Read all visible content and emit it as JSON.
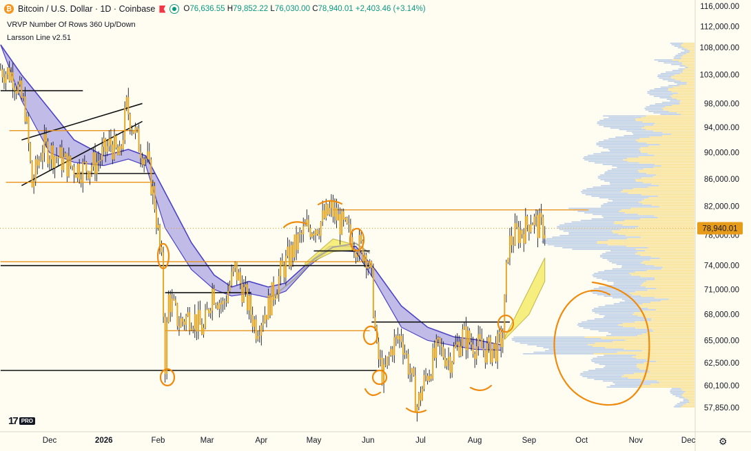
{
  "header": {
    "symbol": "Bitcoin / U.S. Dollar · 1D · Coinbase",
    "coin_glyph": "₿",
    "ohlc": {
      "o_label": "O",
      "o": "76,636.55",
      "h_label": "H",
      "h": "79,852.22",
      "l_label": "L",
      "l": "76,030.00",
      "c_label": "C",
      "c": "78,940.01",
      "change": "+2,403.46 (+3.14%)"
    },
    "indicator1": "VRVP Number Of Rows 360 Up/Down",
    "indicator2": "Larsson Line v2.51"
  },
  "branding": {
    "logo": "17",
    "badge": "PRO"
  },
  "icons": [
    "bitcoin-icon",
    "flag-icon",
    "status-dot-icon",
    "gear-icon"
  ],
  "colors": {
    "background": "#fffdf2",
    "candle": "#e2a727",
    "wick": "#131722",
    "cloud_fill": "#8c85de",
    "cloud_edge": "#4b43c4",
    "lines": "#e8921c",
    "annotation": "#f08a0c",
    "volume_up": "#f6d87a",
    "volume_down": "#9db8e2",
    "price_tag": "#e69b1a"
  },
  "chart_data": {
    "type": "candlestick",
    "title": "Bitcoin / U.S. Dollar · 1D · Coinbase",
    "y_axis": {
      "scale": "log",
      "min": 56500,
      "max": 117000,
      "ticks": [
        116000,
        112000,
        108000,
        103000,
        98000,
        94000,
        90000,
        86000,
        82000,
        78000,
        74000,
        71000,
        68000,
        65000,
        62500,
        60100,
        57850
      ],
      "tick_labels": [
        "116,000.00",
        "112,000.00",
        "108,000.00",
        "103,000.00",
        "98,000.00",
        "94,000.00",
        "90,000.00",
        "86,000.00",
        "82,000.00",
        "78,000.00",
        "74,000.00",
        "71,000.00",
        "68,000.00",
        "65,000.00",
        "62,500.00",
        "60,100.00",
        "57,850.00"
      ]
    },
    "x_axis": {
      "start": "2025-11-03",
      "end": "2026-12-25",
      "ticks": [
        {
          "label": "Dec",
          "date": "2025-12-01"
        },
        {
          "label": "2026",
          "date": "2026-01-01"
        },
        {
          "label": "Feb",
          "date": "2026-02-01"
        },
        {
          "label": "Mar",
          "date": "2026-03-01"
        },
        {
          "label": "Apr",
          "date": "2026-04-01"
        },
        {
          "label": "May",
          "date": "2026-05-01"
        },
        {
          "label": "Jun",
          "date": "2026-06-01"
        },
        {
          "label": "Jul",
          "date": "2026-07-01"
        },
        {
          "label": "Aug",
          "date": "2026-08-01"
        },
        {
          "label": "Sep",
          "date": "2026-09-01"
        },
        {
          "label": "Oct",
          "date": "2026-10-01"
        },
        {
          "label": "Nov",
          "date": "2026-11-01"
        },
        {
          "label": "Dec",
          "date": "2026-12-01"
        }
      ]
    },
    "last_price": {
      "value": 78940,
      "label": "78,940.01"
    },
    "price_path": [
      [
        "2025-11-03",
        104000
      ],
      [
        "2025-11-10",
        103000
      ],
      [
        "2025-11-17",
        97000
      ],
      [
        "2025-11-21",
        85000
      ],
      [
        "2025-11-27",
        91000
      ],
      [
        "2025-12-05",
        89500
      ],
      [
        "2025-12-12",
        88000
      ],
      [
        "2025-12-20",
        87500
      ],
      [
        "2025-12-28",
        88500
      ],
      [
        "2026-01-05",
        91500
      ],
      [
        "2026-01-10",
        89000
      ],
      [
        "2026-01-14",
        97500
      ],
      [
        "2026-01-20",
        92000
      ],
      [
        "2026-01-26",
        88500
      ],
      [
        "2026-01-30",
        82500
      ],
      [
        "2026-02-03",
        74000
      ],
      [
        "2026-02-05",
        62500
      ],
      [
        "2026-02-07",
        70000
      ],
      [
        "2026-02-13",
        67000
      ],
      [
        "2026-02-20",
        68000
      ],
      [
        "2026-02-27",
        66000
      ],
      [
        "2026-03-04",
        71000
      ],
      [
        "2026-03-10",
        69000
      ],
      [
        "2026-03-17",
        73500
      ],
      [
        "2026-03-23",
        70000
      ],
      [
        "2026-03-29",
        66500
      ],
      [
        "2026-04-05",
        69000
      ],
      [
        "2026-04-12",
        73000
      ],
      [
        "2026-04-19",
        76000
      ],
      [
        "2026-04-27",
        79000
      ],
      [
        "2026-05-04",
        79500
      ],
      [
        "2026-05-11",
        81500
      ],
      [
        "2026-05-18",
        79000
      ],
      [
        "2026-05-25",
        77000
      ],
      [
        "2026-05-31",
        75500
      ],
      [
        "2026-06-03",
        72000
      ],
      [
        "2026-06-06",
        63500
      ],
      [
        "2026-06-10",
        61000
      ],
      [
        "2026-06-15",
        64500
      ],
      [
        "2026-06-20",
        65500
      ],
      [
        "2026-06-25",
        61500
      ],
      [
        "2026-06-29",
        58000
      ],
      [
        "2026-07-04",
        61000
      ],
      [
        "2026-07-11",
        64000
      ],
      [
        "2026-07-18",
        63000
      ],
      [
        "2026-07-25",
        65500
      ],
      [
        "2026-08-01",
        64500
      ],
      [
        "2026-08-08",
        63800
      ],
      [
        "2026-08-14",
        64200
      ],
      [
        "2026-08-17",
        65500
      ],
      [
        "2026-08-20",
        76500
      ],
      [
        "2026-08-24",
        78000
      ],
      [
        "2026-08-30",
        79000
      ],
      [
        "2026-09-02",
        80500
      ],
      [
        "2026-09-06",
        79200
      ],
      [
        "2026-09-10",
        78940
      ]
    ],
    "cloud": [
      [
        "2025-11-03",
        108500,
        108500
      ],
      [
        "2025-11-15",
        103000,
        98500
      ],
      [
        "2025-12-01",
        97000,
        90000
      ],
      [
        "2025-12-15",
        92000,
        88500
      ],
      [
        "2026-01-01",
        89500,
        88000
      ],
      [
        "2026-01-15",
        90500,
        89000
      ],
      [
        "2026-01-25",
        89500,
        88000
      ],
      [
        "2026-02-05",
        84000,
        79000
      ],
      [
        "2026-02-20",
        77000,
        73500
      ],
      [
        "2026-03-05",
        72800,
        71000
      ],
      [
        "2026-03-15",
        71300,
        70200
      ],
      [
        "2026-03-25",
        72000,
        70500
      ],
      [
        "2026-04-05",
        71300,
        70000
      ],
      [
        "2026-04-15",
        71800,
        70800
      ],
      [
        "2026-04-28",
        74400,
        73900
      ],
      [
        "2026-05-10",
        76500,
        76000
      ],
      [
        "2026-05-25",
        76500,
        75800
      ],
      [
        "2026-06-05",
        73500,
        72000
      ],
      [
        "2026-06-20",
        69000,
        66500
      ],
      [
        "2026-07-05",
        66500,
        65000
      ],
      [
        "2026-07-20",
        65400,
        64400
      ],
      [
        "2026-08-01",
        65100,
        64000
      ],
      [
        "2026-08-16",
        64500,
        63900
      ]
    ],
    "gray_line": [
      [
        "2026-04-08",
        70200
      ],
      [
        "2026-04-20",
        72300
      ],
      [
        "2026-05-01",
        74800
      ],
      [
        "2026-05-12",
        76400
      ],
      [
        "2026-05-25",
        76900
      ],
      [
        "2026-06-02",
        75600
      ]
    ],
    "yellow_bands": [
      {
        "upper": [
          [
            "2026-04-26",
            74300
          ],
          [
            "2026-05-12",
            77500
          ],
          [
            "2026-05-23",
            76800
          ]
        ],
        "lower": [
          [
            "2026-04-26",
            74000
          ],
          [
            "2026-05-12",
            75800
          ],
          [
            "2026-05-23",
            76000
          ]
        ]
      },
      {
        "upper": [
          [
            "2026-08-18",
            65300
          ],
          [
            "2026-09-01",
            71000
          ],
          [
            "2026-09-10",
            75000
          ]
        ],
        "lower": [
          [
            "2026-08-18",
            65100
          ],
          [
            "2026-09-01",
            68000
          ],
          [
            "2026-09-10",
            72000
          ]
        ]
      }
    ],
    "drawings": {
      "black_lines": [
        [
          [
            "2025-11-03",
            100200
          ],
          [
            "2025-12-20",
            100200
          ]
        ],
        [
          [
            "2025-11-03",
            74000
          ],
          [
            "2026-06-02",
            74000
          ]
        ],
        [
          [
            "2025-11-03",
            61700
          ],
          [
            "2026-06-10",
            61700
          ]
        ],
        [
          [
            "2025-11-15",
            85000
          ],
          [
            "2026-01-23",
            95000
          ]
        ],
        [
          [
            "2025-11-15",
            92000
          ],
          [
            "2026-01-23",
            98000
          ]
        ],
        [
          [
            "2025-12-15",
            86800
          ],
          [
            "2026-01-30",
            86800
          ]
        ],
        [
          [
            "2026-02-05",
            70600
          ],
          [
            "2026-03-26",
            70600
          ]
        ],
        [
          [
            "2026-05-01",
            75900
          ],
          [
            "2026-06-02",
            75900
          ]
        ],
        [
          [
            "2026-06-03",
            67100
          ],
          [
            "2026-08-21",
            67100
          ]
        ]
      ],
      "orange_lines": [
        [
          [
            "2025-11-08",
            93500
          ],
          [
            "2026-01-21",
            93500
          ]
        ],
        [
          [
            "2025-11-06",
            85500
          ],
          [
            "2026-01-30",
            85500
          ]
        ],
        [
          [
            "2025-11-03",
            74500
          ],
          [
            "2026-06-02",
            74500
          ]
        ],
        [
          [
            "2026-02-05",
            66100
          ],
          [
            "2026-06-02",
            66100
          ]
        ],
        [
          [
            "2026-05-12",
            81500
          ],
          [
            "2026-10-05",
            81500
          ]
        ]
      ],
      "annotations": [
        "circle-feb-top",
        "circle-feb-bottom",
        "arc-may-left",
        "arc-may-top",
        "circle-jun-top",
        "circle-jun-mid",
        "circle-jun-low",
        "arc-jun-bottom",
        "arc-jul-bottom",
        "arc-aug-bottom",
        "circle-aug-breakout",
        "big-circle-forecast"
      ]
    }
  }
}
